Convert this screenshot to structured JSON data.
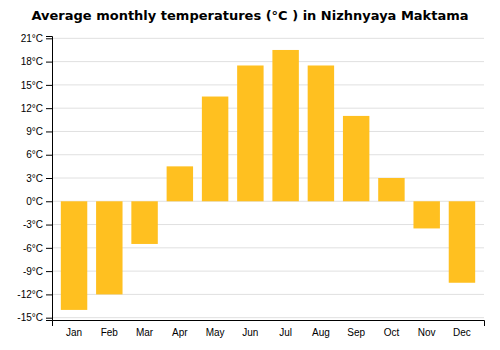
{
  "chart_data": {
    "type": "bar",
    "title": "Average monthly temperatures (°C ) in Nizhnyaya Maktama",
    "categories": [
      "Jan",
      "Feb",
      "Mar",
      "Apr",
      "May",
      "Jun",
      "Jul",
      "Aug",
      "Sep",
      "Oct",
      "Nov",
      "Dec"
    ],
    "values": [
      -14,
      -12,
      -5.5,
      4.5,
      13.5,
      17.5,
      19.5,
      17.5,
      11,
      3,
      -3.5,
      -10.5
    ],
    "color": "#FFC020",
    "ylim": [
      -15.3,
      21.3
    ],
    "yticks": [
      {
        "value": -15,
        "label": "-15°C"
      },
      {
        "value": -12,
        "label": "-12°C"
      },
      {
        "value": -9,
        "label": "-9°C"
      },
      {
        "value": -6,
        "label": "-6°C"
      },
      {
        "value": -3,
        "label": "-3°C"
      },
      {
        "value": 0,
        "label": "0°C"
      },
      {
        "value": 3,
        "label": "3°C"
      },
      {
        "value": 6,
        "label": "6°C"
      },
      {
        "value": 9,
        "label": "9°C"
      },
      {
        "value": 12,
        "label": "12°C"
      },
      {
        "value": 15,
        "label": "15°C"
      },
      {
        "value": 18,
        "label": "18°C"
      },
      {
        "value": 21,
        "label": "21°C"
      }
    ],
    "grid": true
  }
}
